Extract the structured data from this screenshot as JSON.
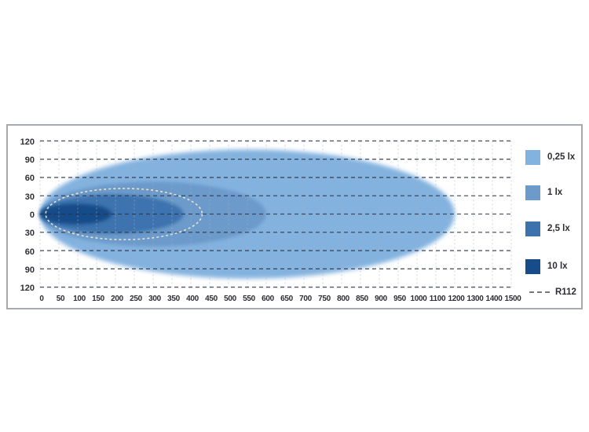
{
  "chart_data": {
    "type": "area",
    "subtype": "isolux-beam-pattern",
    "title": "",
    "xlabel": "",
    "ylabel": "",
    "x_axis": {
      "tick_labels": [
        "0",
        "50",
        "100",
        "150",
        "200",
        "250",
        "300",
        "350",
        "400",
        "450",
        "500",
        "550",
        "600",
        "650",
        "700",
        "750",
        "800",
        "850",
        "900",
        "950",
        "1000",
        "1100",
        "1200",
        "1300",
        "1400",
        "1500"
      ],
      "tick_values": [
        0,
        50,
        100,
        150,
        200,
        250,
        300,
        350,
        400,
        450,
        500,
        550,
        600,
        650,
        700,
        750,
        800,
        850,
        900,
        950,
        1000,
        1100,
        1200,
        1300,
        1400,
        1500
      ],
      "note": "equal pixel spacing per gridline; 50 per cell up to 1000, then 100 per cell",
      "range": [
        0,
        1500
      ],
      "grid": "dashed-light"
    },
    "y_axis": {
      "tick_labels": [
        "120",
        "90",
        "60",
        "30",
        "0",
        "30",
        "60",
        "90",
        "120"
      ],
      "tick_values": [
        120,
        90,
        60,
        30,
        0,
        -30,
        -60,
        -90,
        -120
      ],
      "range": [
        -120,
        120
      ],
      "grid": "dashed-dark"
    },
    "series": [
      {
        "name": "0,25 lx",
        "color": "#83b2df",
        "reach": 1200,
        "half_spread": 106
      },
      {
        "name": "1 lx",
        "color": "#6c9aca",
        "reach": 600,
        "half_spread": 53
      },
      {
        "name": "2,5 lx",
        "color": "#3c73ae",
        "reach": 380,
        "half_spread": 32
      },
      {
        "name": "10 lx",
        "color": "#164c89",
        "reach": 190,
        "half_spread": 17
      }
    ],
    "reference": {
      "name": "R112",
      "style": "dashed",
      "color": "#ede8d0",
      "start": 15,
      "reach": 430,
      "half_spread": 42
    },
    "legend_position": "right"
  },
  "legend": {
    "items": [
      {
        "label": "0,25 lx"
      },
      {
        "label": "1 lx"
      },
      {
        "label": "2,5 lx"
      },
      {
        "label": "10 lx"
      }
    ],
    "r112_label": "R112"
  },
  "frame": {
    "border_color": "#a6aaae",
    "background": "#ffffff"
  }
}
